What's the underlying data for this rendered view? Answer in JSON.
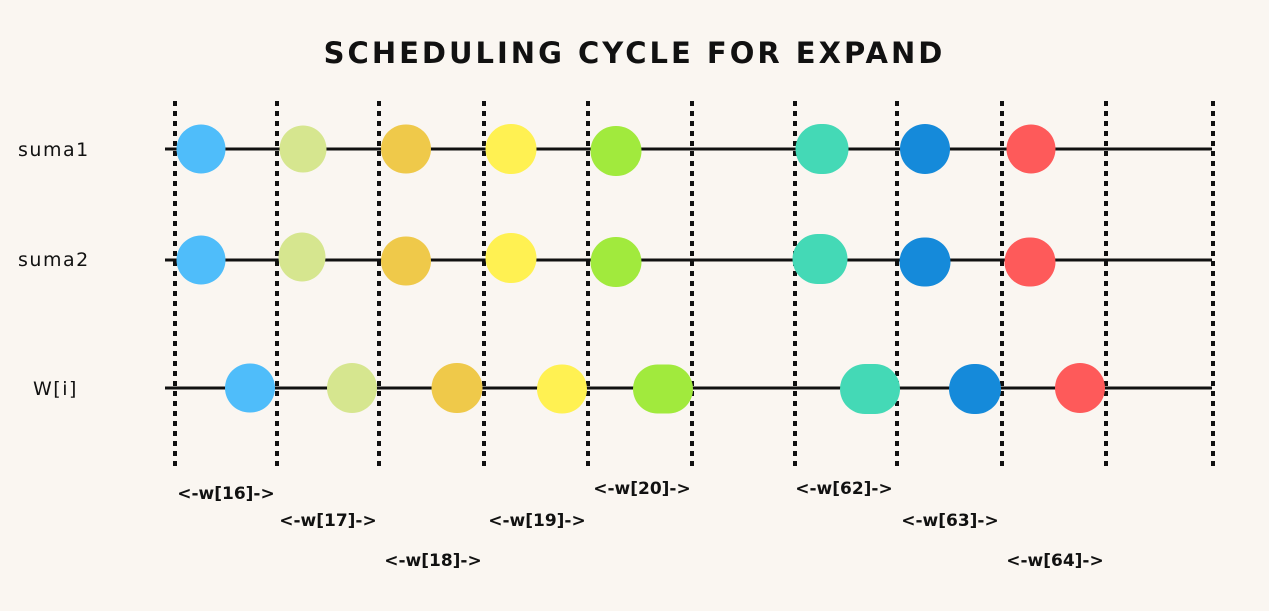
{
  "title": "SCHEDULING CYCLE FOR EXPAND",
  "rows": [
    {
      "label": "suma1"
    },
    {
      "label": "suma2"
    },
    {
      "label": "W[i]"
    }
  ],
  "interval_labels": [
    "<-w[16]->",
    "<-w[17]->",
    "<-w[18]->",
    "<-w[19]->",
    "<-w[20]->",
    "<-w[62]->",
    "<-w[63]->",
    "<-w[64]->"
  ],
  "node_colors": [
    "#4fbdfa",
    "#d6e68f",
    "#efc94a",
    "#fff152",
    "#a1ea3d",
    "#44d9b6",
    "#158ada",
    "#fe5a5a"
  ]
}
